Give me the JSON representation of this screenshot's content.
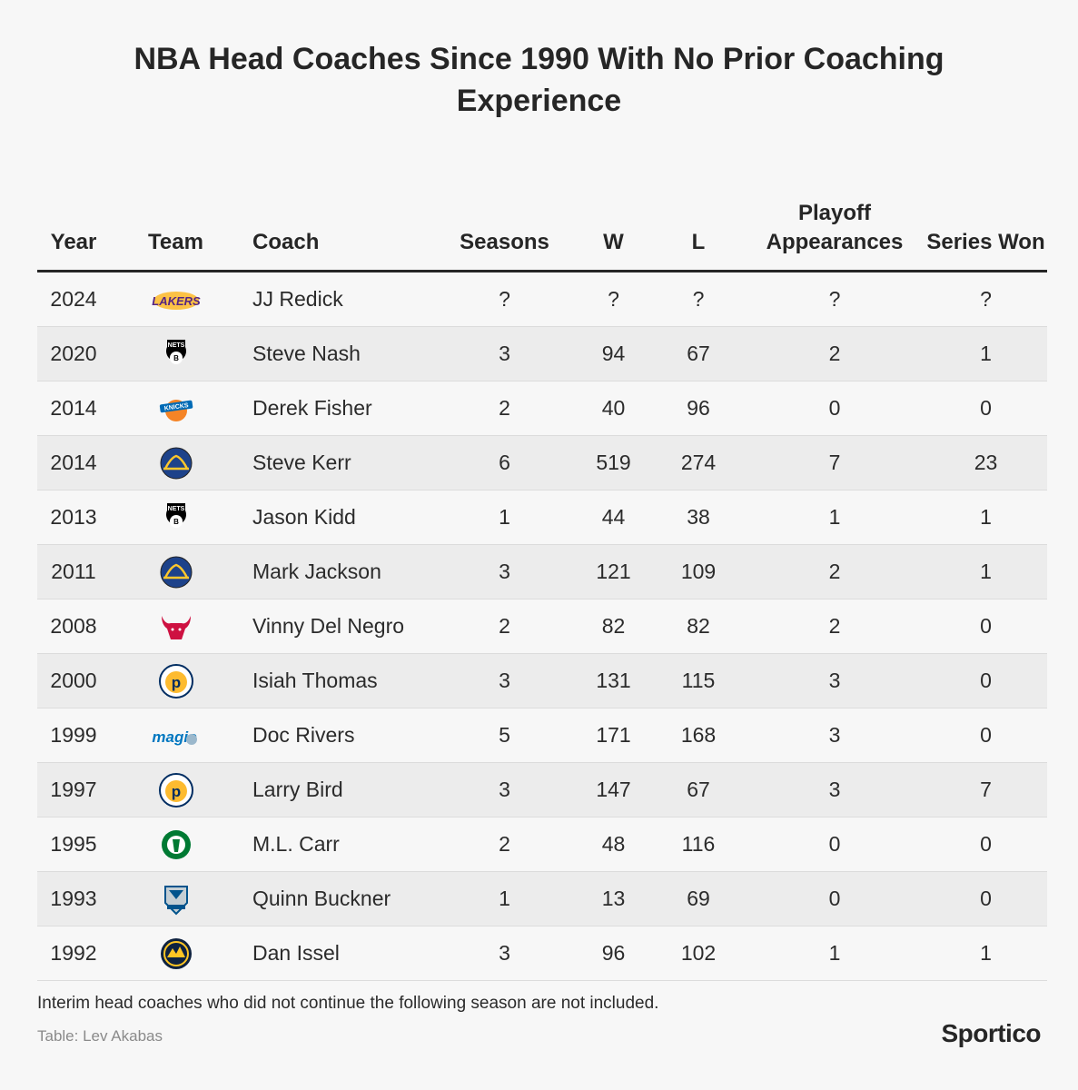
{
  "title": "NBA Head Coaches Since 1990 With No Prior Coaching Experience",
  "columns": {
    "year": "Year",
    "team": "Team",
    "coach": "Coach",
    "seasons": "Seasons",
    "w": "W",
    "l": "L",
    "playoff": "Playoff Appearances",
    "series": "Series Won"
  },
  "chart_data": {
    "type": "table",
    "columns": [
      "Year",
      "Team",
      "Coach",
      "Seasons",
      "W",
      "L",
      "Playoff Appearances",
      "Series Won"
    ],
    "rows": [
      {
        "year": "2024",
        "team_logo": "lakers-logo-icon",
        "coach": "JJ Redick",
        "seasons": "?",
        "w": "?",
        "l": "?",
        "playoff": "?",
        "series": "?"
      },
      {
        "year": "2020",
        "team_logo": "nets-logo-icon",
        "coach": "Steve Nash",
        "seasons": "3",
        "w": "94",
        "l": "67",
        "playoff": "2",
        "series": "1"
      },
      {
        "year": "2014",
        "team_logo": "knicks-logo-icon",
        "coach": "Derek Fisher",
        "seasons": "2",
        "w": "40",
        "l": "96",
        "playoff": "0",
        "series": "0"
      },
      {
        "year": "2014",
        "team_logo": "warriors-logo-icon",
        "coach": "Steve Kerr",
        "seasons": "6",
        "w": "519",
        "l": "274",
        "playoff": "7",
        "series": "23"
      },
      {
        "year": "2013",
        "team_logo": "nets-logo-icon",
        "coach": "Jason Kidd",
        "seasons": "1",
        "w": "44",
        "l": "38",
        "playoff": "1",
        "series": "1"
      },
      {
        "year": "2011",
        "team_logo": "warriors-logo-icon",
        "coach": "Mark Jackson",
        "seasons": "3",
        "w": "121",
        "l": "109",
        "playoff": "2",
        "series": "1"
      },
      {
        "year": "2008",
        "team_logo": "bulls-logo-icon",
        "coach": "Vinny Del Negro",
        "seasons": "2",
        "w": "82",
        "l": "82",
        "playoff": "2",
        "series": "0"
      },
      {
        "year": "2000",
        "team_logo": "pacers-logo-icon",
        "coach": "Isiah Thomas",
        "seasons": "3",
        "w": "131",
        "l": "115",
        "playoff": "3",
        "series": "0"
      },
      {
        "year": "1999",
        "team_logo": "magic-logo-icon",
        "coach": "Doc Rivers",
        "seasons": "5",
        "w": "171",
        "l": "168",
        "playoff": "3",
        "series": "0"
      },
      {
        "year": "1997",
        "team_logo": "pacers-logo-icon",
        "coach": "Larry Bird",
        "seasons": "3",
        "w": "147",
        "l": "67",
        "playoff": "3",
        "series": "7"
      },
      {
        "year": "1995",
        "team_logo": "celtics-logo-icon",
        "coach": "M.L. Carr",
        "seasons": "2",
        "w": "48",
        "l": "116",
        "playoff": "0",
        "series": "0"
      },
      {
        "year": "1993",
        "team_logo": "mavericks-logo-icon",
        "coach": "Quinn Buckner",
        "seasons": "1",
        "w": "13",
        "l": "69",
        "playoff": "0",
        "series": "0"
      },
      {
        "year": "1992",
        "team_logo": "nuggets-logo-icon",
        "coach": "Dan Issel",
        "seasons": "3",
        "w": "96",
        "l": "102",
        "playoff": "1",
        "series": "1"
      }
    ]
  },
  "logos": {
    "lakers": {
      "text": "LAKERS",
      "color": "#552583",
      "accent": "#FDB927"
    },
    "nets": {
      "text": "NETS",
      "color": "#000000"
    },
    "knicks": {
      "text": "KNICKS",
      "color": "#006BB6",
      "accent": "#F58426"
    },
    "warriors": {
      "color": "#1D428A",
      "accent": "#FFC72C"
    },
    "bulls": {
      "color": "#CE1141"
    },
    "pacers": {
      "color": "#FDBB30",
      "accent": "#002D62"
    },
    "magic": {
      "text": "magic",
      "color": "#0077C0"
    },
    "celtics": {
      "color": "#007A33"
    },
    "mavericks": {
      "color": "#00538C"
    },
    "nuggets": {
      "color": "#0E2240",
      "accent": "#FEC524"
    }
  },
  "footer": {
    "note": "Interim head coaches who did not continue the following season are not included.",
    "source": "Table: Lev Akabas",
    "brand": "Sportico"
  }
}
